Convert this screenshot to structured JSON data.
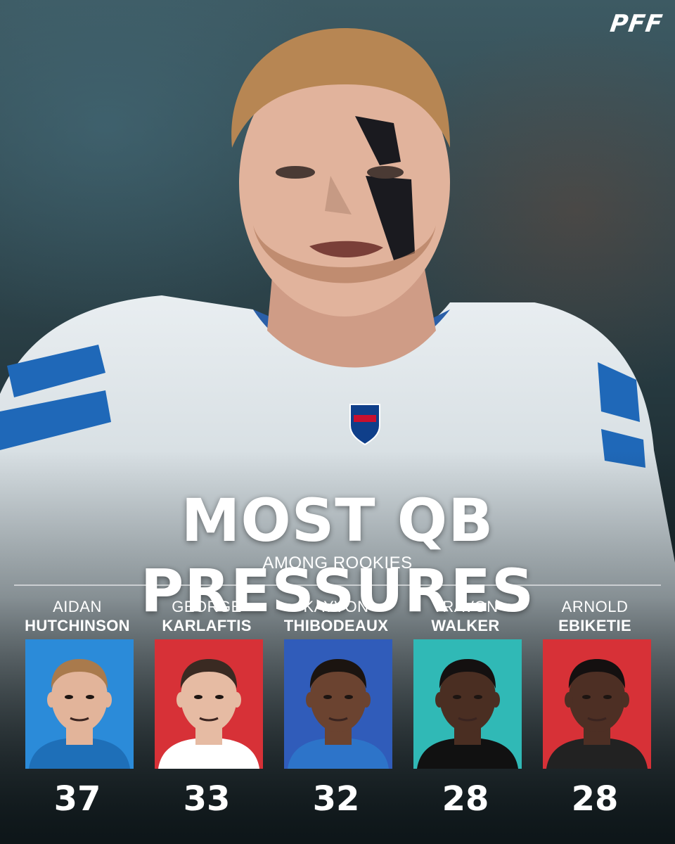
{
  "brand": {
    "logo_text": "PFF"
  },
  "header": {
    "title": "MOST QB PRESSURES",
    "subtitle": "AMONG ROOKIES"
  },
  "colors": {
    "blue": "#1a6fc9",
    "red": "#d42027",
    "deep_blue": "#1f4fb5",
    "teal": "#1fb3b0"
  },
  "players": [
    {
      "first": "AIDAN",
      "last": "HUTCHINSON",
      "pressures": "37",
      "bg": "#1a82d6",
      "skin": "#e2b49a",
      "hair": "#a97a4c",
      "jersey": "#1e6fb8"
    },
    {
      "first": "GEORGE",
      "last": "KARLAFTIS",
      "pressures": "33",
      "bg": "#d42027",
      "skin": "#e6bba3",
      "hair": "#3a2a22",
      "jersey": "#ffffff"
    },
    {
      "first": "KAYVON",
      "last": "THIBODEAUX",
      "pressures": "32",
      "bg": "#1f4fb5",
      "skin": "#6b4330",
      "hair": "#1b1410",
      "jersey": "#2d74c9"
    },
    {
      "first": "TRAVON",
      "last": "WALKER",
      "pressures": "28",
      "bg": "#1fb3b0",
      "skin": "#4a2e22",
      "hair": "#141010",
      "jersey": "#111111"
    },
    {
      "first": "ARNOLD",
      "last": "EBIKETIE",
      "pressures": "28",
      "bg": "#d42027",
      "skin": "#4d2f24",
      "hair": "#141010",
      "jersey": "#222222"
    }
  ]
}
